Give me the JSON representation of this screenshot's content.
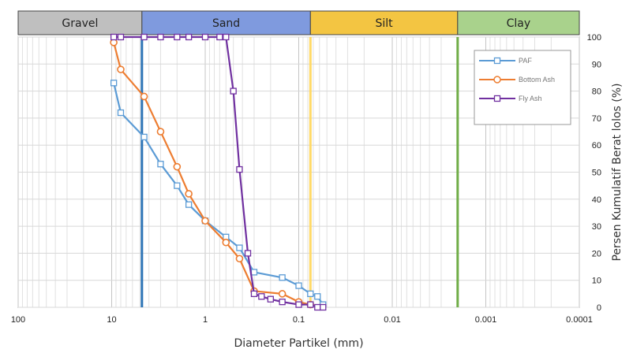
{
  "chart_data": {
    "type": "line",
    "x_scale": "log",
    "x_reversed": true,
    "xlim": [
      100,
      0.0001
    ],
    "ylim": [
      0,
      100
    ],
    "xlabel": "Diameter Partikel (mm)",
    "ylabel": "Persen Kumulatif Berat lolos (%)",
    "x_ticks": [
      100,
      10,
      1,
      0.1,
      0.01,
      0.001,
      0.0001
    ],
    "x_tick_labels": [
      "100",
      "10",
      "1",
      "0.1",
      "0.01",
      "0.001",
      "0.0001"
    ],
    "y_ticks": [
      0,
      10,
      20,
      30,
      40,
      50,
      60,
      70,
      80,
      90,
      100
    ],
    "y_tick_labels": [
      "0",
      "10",
      "20",
      "30",
      "40",
      "50",
      "60",
      "70",
      "80",
      "90",
      "100"
    ],
    "grid": true,
    "legend_position": "top-right",
    "bands": [
      {
        "label": "Gravel",
        "from": 100,
        "to": 4.75,
        "color": "#bfbfbf"
      },
      {
        "label": "Sand",
        "from": 4.75,
        "to": 0.075,
        "color": "#7f9ade"
      },
      {
        "label": "Silt",
        "from": 0.075,
        "to": 0.002,
        "color": "#f3c542"
      },
      {
        "label": "Clay",
        "from": 0.002,
        "to": 0.0001,
        "color": "#a9d28c"
      }
    ],
    "boundaries": [
      {
        "x": 4.75,
        "color": "#2e75b6"
      },
      {
        "x": 0.075,
        "color": "#ffd966"
      },
      {
        "x": 0.002,
        "color": "#70ad47"
      }
    ],
    "series": [
      {
        "name": "PAF",
        "color": "#5b9bd5",
        "marker": "square",
        "x": [
          9.5,
          8.0,
          4.5,
          3.0,
          2.0,
          1.5,
          1.0,
          0.6,
          0.43,
          0.3,
          0.15,
          0.1,
          0.075,
          0.063,
          0.055
        ],
        "y": [
          83,
          72,
          63,
          53,
          45,
          38,
          32,
          26,
          22,
          13,
          11,
          8,
          5,
          4,
          1
        ]
      },
      {
        "name": "Bottom Ash",
        "color": "#ed7d31",
        "marker": "circle",
        "x": [
          9.5,
          8.0,
          4.5,
          3.0,
          2.0,
          1.5,
          1.0,
          0.6,
          0.43,
          0.3,
          0.15,
          0.1,
          0.075
        ],
        "y": [
          98,
          88,
          78,
          65,
          52,
          42,
          32,
          24,
          18,
          6,
          5,
          2,
          1
        ]
      },
      {
        "name": "Fly Ash",
        "color": "#7030a0",
        "marker": "square",
        "x": [
          9.5,
          8.0,
          4.5,
          3.0,
          2.0,
          1.5,
          1.0,
          0.7,
          0.6,
          0.5,
          0.43,
          0.35,
          0.3,
          0.25,
          0.2,
          0.15,
          0.1,
          0.075,
          0.063,
          0.055
        ],
        "y": [
          100,
          100,
          100,
          100,
          100,
          100,
          100,
          100,
          100,
          80,
          51,
          20,
          5,
          4,
          3,
          2,
          1,
          1,
          0,
          0
        ]
      }
    ]
  }
}
